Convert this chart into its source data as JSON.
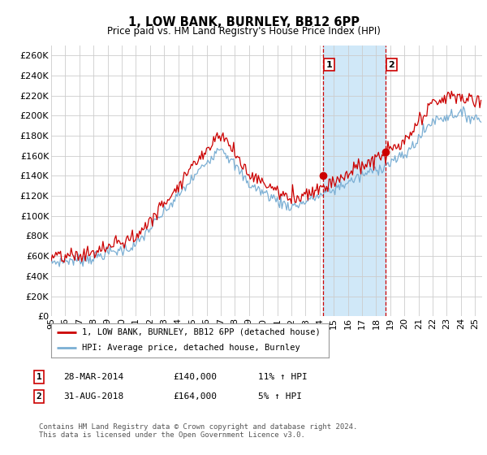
{
  "title": "1, LOW BANK, BURNLEY, BB12 6PP",
  "subtitle": "Price paid vs. HM Land Registry's House Price Index (HPI)",
  "ylabel_ticks": [
    "£0",
    "£20K",
    "£40K",
    "£60K",
    "£80K",
    "£100K",
    "£120K",
    "£140K",
    "£160K",
    "£180K",
    "£200K",
    "£220K",
    "£240K",
    "£260K"
  ],
  "ytick_values": [
    0,
    20000,
    40000,
    60000,
    80000,
    100000,
    120000,
    140000,
    160000,
    180000,
    200000,
    220000,
    240000,
    260000
  ],
  "ylim": [
    0,
    270000
  ],
  "xlim_start": 1995.0,
  "xlim_end": 2025.5,
  "xtick_years": [
    1995,
    1996,
    1997,
    1998,
    1999,
    2000,
    2001,
    2002,
    2003,
    2004,
    2005,
    2006,
    2007,
    2008,
    2009,
    2010,
    2011,
    2012,
    2013,
    2014,
    2015,
    2016,
    2017,
    2018,
    2019,
    2020,
    2021,
    2022,
    2023,
    2024,
    2025
  ],
  "xtick_labels": [
    "95",
    "96",
    "97",
    "98",
    "99",
    "00",
    "01",
    "02",
    "03",
    "04",
    "05",
    "06",
    "07",
    "08",
    "09",
    "10",
    "11",
    "12",
    "13",
    "14",
    "15",
    "16",
    "17",
    "18",
    "19",
    "20",
    "21",
    "22",
    "23",
    "24",
    "25"
  ],
  "hpi_line_color": "#7bafd4",
  "price_line_color": "#cc0000",
  "marker1_x": 2014.24,
  "marker1_y": 140000,
  "marker2_x": 2018.67,
  "marker2_y": 164000,
  "vline_color": "#cc0000",
  "vline1_x": 2014.24,
  "vline2_x": 2018.67,
  "span_color": "#d0e8f8",
  "legend_label1": "1, LOW BANK, BURNLEY, BB12 6PP (detached house)",
  "legend_label2": "HPI: Average price, detached house, Burnley",
  "table_row1": [
    "1",
    "28-MAR-2014",
    "£140,000",
    "11% ↑ HPI"
  ],
  "table_row2": [
    "2",
    "31-AUG-2018",
    "£164,000",
    "5% ↑ HPI"
  ],
  "footnote": "Contains HM Land Registry data © Crown copyright and database right 2024.\nThis data is licensed under the Open Government Licence v3.0.",
  "background_color": "#ffffff",
  "grid_color": "#cccccc"
}
